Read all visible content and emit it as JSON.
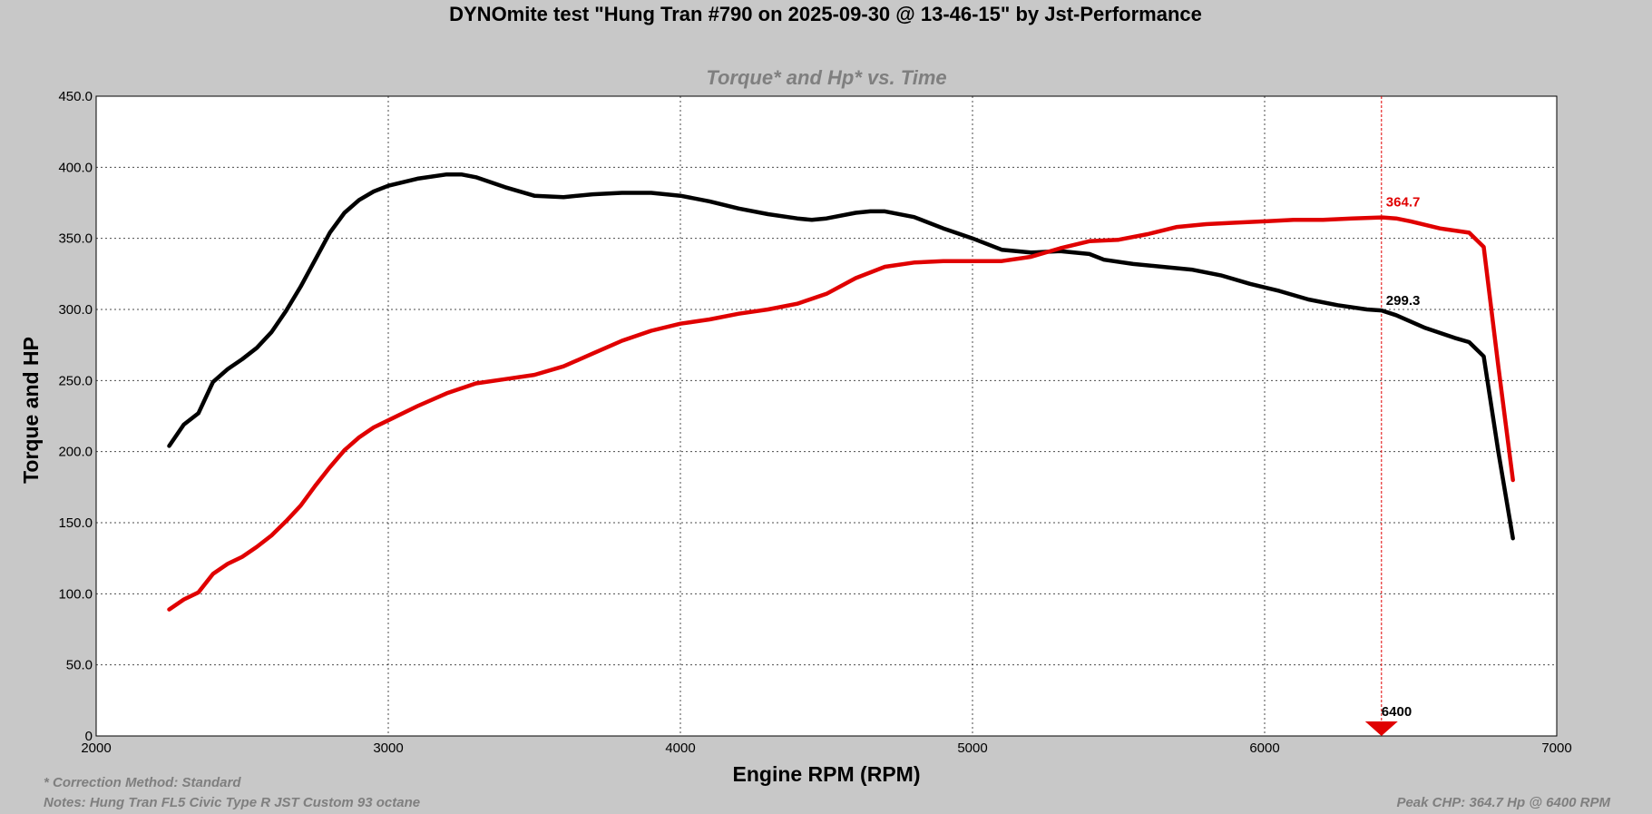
{
  "chart_data": {
    "type": "line",
    "title": "DYNOmite test \"Hung Tran #790 on 2025-09-30 @ 13-46-15\" by Jst-Performance",
    "subtitle": "Torque* and Hp* vs. Time",
    "xlabel": "Engine RPM (RPM)",
    "ylabel": "Torque and HP",
    "xlim": [
      2000,
      7000
    ],
    "ylim": [
      0,
      450
    ],
    "x_ticks": [
      "2000",
      "3000",
      "4000",
      "5000",
      "6000",
      "7000"
    ],
    "y_ticks": [
      "0",
      "50.0",
      "100.0",
      "150.0",
      "200.0",
      "250.0",
      "300.0",
      "350.0",
      "400.0",
      "450.0"
    ],
    "grid": true,
    "series": [
      {
        "color": "#000000",
        "points": [
          [
            2250,
            204
          ],
          [
            2300,
            219
          ],
          [
            2350,
            227
          ],
          [
            2400,
            249
          ],
          [
            2450,
            258
          ],
          [
            2500,
            265
          ],
          [
            2550,
            273
          ],
          [
            2600,
            284
          ],
          [
            2650,
            299
          ],
          [
            2700,
            316
          ],
          [
            2750,
            335
          ],
          [
            2800,
            354
          ],
          [
            2850,
            368
          ],
          [
            2900,
            377
          ],
          [
            2950,
            383
          ],
          [
            3000,
            387
          ],
          [
            3100,
            392
          ],
          [
            3200,
            395
          ],
          [
            3250,
            395
          ],
          [
            3300,
            393
          ],
          [
            3400,
            386
          ],
          [
            3500,
            380
          ],
          [
            3600,
            379
          ],
          [
            3700,
            381
          ],
          [
            3800,
            382
          ],
          [
            3900,
            382
          ],
          [
            4000,
            380
          ],
          [
            4100,
            376
          ],
          [
            4200,
            371
          ],
          [
            4300,
            367
          ],
          [
            4400,
            364
          ],
          [
            4450,
            363
          ],
          [
            4500,
            364
          ],
          [
            4600,
            368
          ],
          [
            4650,
            369
          ],
          [
            4700,
            369
          ],
          [
            4800,
            365
          ],
          [
            4900,
            357
          ],
          [
            5000,
            350
          ],
          [
            5100,
            342
          ],
          [
            5200,
            340
          ],
          [
            5300,
            341
          ],
          [
            5400,
            339
          ],
          [
            5450,
            335
          ],
          [
            5550,
            332
          ],
          [
            5650,
            330
          ],
          [
            5750,
            328
          ],
          [
            5850,
            324
          ],
          [
            5950,
            318
          ],
          [
            6050,
            313
          ],
          [
            6150,
            307
          ],
          [
            6250,
            303
          ],
          [
            6350,
            300
          ],
          [
            6400,
            299.3
          ],
          [
            6450,
            296
          ],
          [
            6550,
            287
          ],
          [
            6650,
            280
          ],
          [
            6700,
            277
          ],
          [
            6750,
            267
          ],
          [
            6800,
            200
          ],
          [
            6850,
            139
          ]
        ]
      },
      {
        "color": "#e00000",
        "points": [
          [
            2250,
            89
          ],
          [
            2300,
            96
          ],
          [
            2350,
            101
          ],
          [
            2400,
            114
          ],
          [
            2450,
            121
          ],
          [
            2500,
            126
          ],
          [
            2550,
            133
          ],
          [
            2600,
            141
          ],
          [
            2650,
            151
          ],
          [
            2700,
            162
          ],
          [
            2750,
            176
          ],
          [
            2800,
            189
          ],
          [
            2850,
            201
          ],
          [
            2900,
            210
          ],
          [
            2950,
            217
          ],
          [
            3000,
            222
          ],
          [
            3100,
            232
          ],
          [
            3200,
            241
          ],
          [
            3300,
            248
          ],
          [
            3400,
            251
          ],
          [
            3500,
            254
          ],
          [
            3600,
            260
          ],
          [
            3700,
            269
          ],
          [
            3800,
            278
          ],
          [
            3900,
            285
          ],
          [
            4000,
            290
          ],
          [
            4100,
            293
          ],
          [
            4200,
            297
          ],
          [
            4300,
            300
          ],
          [
            4400,
            304
          ],
          [
            4500,
            311
          ],
          [
            4600,
            322
          ],
          [
            4700,
            330
          ],
          [
            4800,
            333
          ],
          [
            4900,
            334
          ],
          [
            5000,
            334
          ],
          [
            5100,
            334
          ],
          [
            5200,
            337
          ],
          [
            5300,
            343
          ],
          [
            5400,
            348
          ],
          [
            5500,
            349
          ],
          [
            5600,
            353
          ],
          [
            5700,
            358
          ],
          [
            5800,
            360
          ],
          [
            5900,
            361
          ],
          [
            6000,
            362
          ],
          [
            6100,
            363
          ],
          [
            6200,
            363
          ],
          [
            6300,
            364
          ],
          [
            6400,
            364.7
          ],
          [
            6450,
            364
          ],
          [
            6500,
            362
          ],
          [
            6600,
            357
          ],
          [
            6700,
            354
          ],
          [
            6750,
            344
          ],
          [
            6800,
            260
          ],
          [
            6850,
            180
          ]
        ]
      }
    ],
    "annotations": {
      "peak_hp_label": "364.7",
      "peak_tq_label": "299.3",
      "marker_rpm": 6400,
      "marker_label": "6400",
      "marker_color": "#e00000"
    }
  },
  "footer": {
    "correction": "* Correction Method: Standard",
    "notes": "Notes: Hung Tran FL5 Civic Type R JST Custom 93 octane",
    "peak": "Peak CHP: 364.7 Hp @ 6400 RPM"
  }
}
